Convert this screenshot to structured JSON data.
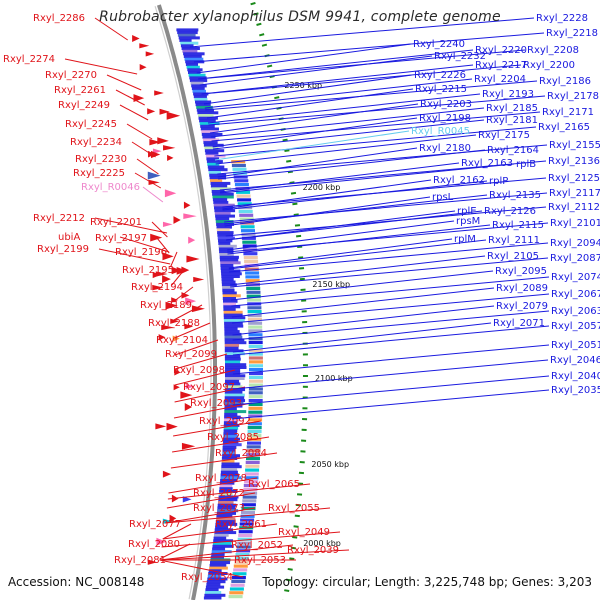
{
  "title": "Rubrobacter xylanophilus DSM 9941, complete genome",
  "footer": {
    "accession": "Accession: NC_008148",
    "summary": "Topology: circular; Length: 3,225,748 bp; Genes: 3,203"
  },
  "colors": {
    "forward_strand": "#e0141a",
    "reverse_strand": "#1a1adf",
    "rna_forward": "#ee88cc",
    "rna_reverse": "#66ccee",
    "backbone": "#8a8a8a",
    "tick": "#1a8a1a"
  },
  "coordinate_labels": [
    "2250 kbp",
    "2200 kbp",
    "2150 kbp",
    "2100 kbp",
    "2050 kbp",
    "2000 kbp"
  ],
  "left_labels": [
    {
      "text": "Rxyl_2286",
      "kind": "gene"
    },
    {
      "text": "Rxyl_2274",
      "kind": "gene"
    },
    {
      "text": "Rxyl_2270",
      "kind": "gene"
    },
    {
      "text": "Rxyl_2261",
      "kind": "gene"
    },
    {
      "text": "Rxyl_2249",
      "kind": "gene"
    },
    {
      "text": "Rxyl_2245",
      "kind": "gene"
    },
    {
      "text": "Rxyl_2234",
      "kind": "gene"
    },
    {
      "text": "Rxyl_2230",
      "kind": "gene"
    },
    {
      "text": "Rxyl_2225",
      "kind": "gene"
    },
    {
      "text": "Rxyl_R0046",
      "kind": "rna"
    },
    {
      "text": "Rxyl_2212",
      "kind": "gene"
    },
    {
      "text": "Rxyl_2201",
      "kind": "gene"
    },
    {
      "text": "ubiA",
      "kind": "gene"
    },
    {
      "text": "Rxyl_2197",
      "kind": "gene"
    },
    {
      "text": "Rxyl_2199",
      "kind": "gene"
    },
    {
      "text": "Rxyl_2196",
      "kind": "gene"
    },
    {
      "text": "Rxyl_2195",
      "kind": "gene"
    },
    {
      "text": "Rxyl_2194",
      "kind": "gene"
    },
    {
      "text": "Rxyl_2189",
      "kind": "gene"
    },
    {
      "text": "Rxyl_2188",
      "kind": "gene"
    },
    {
      "text": "Rxyl_2104",
      "kind": "gene"
    },
    {
      "text": "Rxyl_2099",
      "kind": "gene"
    },
    {
      "text": "Rxyl_2098",
      "kind": "gene"
    },
    {
      "text": "Rxyl_2097",
      "kind": "gene"
    },
    {
      "text": "Rxyl_2093",
      "kind": "gene"
    },
    {
      "text": "Rxyl_2092",
      "kind": "gene"
    },
    {
      "text": "Rxyl_2085",
      "kind": "gene"
    },
    {
      "text": "Rxyl_2084",
      "kind": "gene"
    },
    {
      "text": "Rxyl_2078",
      "kind": "gene"
    },
    {
      "text": "Rxyl_2072",
      "kind": "gene"
    },
    {
      "text": "Rxyl_2065",
      "kind": "gene"
    },
    {
      "text": "Rxyl_2073",
      "kind": "gene"
    },
    {
      "text": "Rxyl_2055",
      "kind": "gene"
    },
    {
      "text": "Rxyl_2077",
      "kind": "gene"
    },
    {
      "text": "Rxyl_2061",
      "kind": "gene"
    },
    {
      "text": "Rxyl_2049",
      "kind": "gene"
    },
    {
      "text": "Rxyl_2080",
      "kind": "gene"
    },
    {
      "text": "Rxyl_2052",
      "kind": "gene"
    },
    {
      "text": "Rxyl_2039",
      "kind": "gene"
    },
    {
      "text": "Rxyl_2081",
      "kind": "gene"
    },
    {
      "text": "Rxyl_2053",
      "kind": "gene"
    },
    {
      "text": "Rxyl_2054",
      "kind": "gene"
    }
  ],
  "right_labels": [
    {
      "text": "Rxyl_2228",
      "kind": "gene"
    },
    {
      "text": "Rxyl_2218",
      "kind": "gene"
    },
    {
      "text": "Rxyl_2240",
      "kind": "gene"
    },
    {
      "text": "Rxyl_2220",
      "kind": "gene"
    },
    {
      "text": "Rxyl_2208",
      "kind": "gene"
    },
    {
      "text": "Rxyl_2232",
      "kind": "gene"
    },
    {
      "text": "Rxyl_2217",
      "kind": "gene"
    },
    {
      "text": "Rxyl_2200",
      "kind": "gene"
    },
    {
      "text": "Rxyl_2226",
      "kind": "gene"
    },
    {
      "text": "Rxyl_2204",
      "kind": "gene"
    },
    {
      "text": "Rxyl_2186",
      "kind": "gene"
    },
    {
      "text": "Rxyl_2215",
      "kind": "gene"
    },
    {
      "text": "Rxyl_2193",
      "kind": "gene"
    },
    {
      "text": "Rxyl_2178",
      "kind": "gene"
    },
    {
      "text": "Rxyl_2203",
      "kind": "gene"
    },
    {
      "text": "Rxyl_2185",
      "kind": "gene"
    },
    {
      "text": "Rxyl_2171",
      "kind": "gene"
    },
    {
      "text": "Rxyl_2198",
      "kind": "gene"
    },
    {
      "text": "Rxyl_2181",
      "kind": "gene"
    },
    {
      "text": "Rxyl_2165",
      "kind": "gene"
    },
    {
      "text": "Rxyl_R0045",
      "kind": "rna"
    },
    {
      "text": "Rxyl_2175",
      "kind": "gene"
    },
    {
      "text": "Rxyl_2180",
      "kind": "gene"
    },
    {
      "text": "Rxyl_2164",
      "kind": "gene"
    },
    {
      "text": "Rxyl_2155",
      "kind": "gene"
    },
    {
      "text": "Rxyl_2163",
      "kind": "gene"
    },
    {
      "text": "rplB",
      "kind": "gene"
    },
    {
      "text": "Rxyl_2136",
      "kind": "gene"
    },
    {
      "text": "Rxyl_2162",
      "kind": "gene"
    },
    {
      "text": "rplP",
      "kind": "gene"
    },
    {
      "text": "Rxyl_2125",
      "kind": "gene"
    },
    {
      "text": "rpsL",
      "kind": "gene"
    },
    {
      "text": "Rxyl_2135",
      "kind": "gene"
    },
    {
      "text": "Rxyl_2117",
      "kind": "gene"
    },
    {
      "text": "rplE",
      "kind": "gene"
    },
    {
      "text": "Rxyl_2126",
      "kind": "gene"
    },
    {
      "text": "Rxyl_2112",
      "kind": "gene"
    },
    {
      "text": "rpsM",
      "kind": "gene"
    },
    {
      "text": "Rxyl_2115",
      "kind": "gene"
    },
    {
      "text": "Rxyl_2101",
      "kind": "gene"
    },
    {
      "text": "rplM",
      "kind": "gene"
    },
    {
      "text": "Rxyl_2111",
      "kind": "gene"
    },
    {
      "text": "Rxyl_2094",
      "kind": "gene"
    },
    {
      "text": "Rxyl_2105",
      "kind": "gene"
    },
    {
      "text": "Rxyl_2087",
      "kind": "gene"
    },
    {
      "text": "Rxyl_2095",
      "kind": "gene"
    },
    {
      "text": "Rxyl_2074",
      "kind": "gene"
    },
    {
      "text": "Rxyl_2089",
      "kind": "gene"
    },
    {
      "text": "Rxyl_2067",
      "kind": "gene"
    },
    {
      "text": "Rxyl_2079",
      "kind": "gene"
    },
    {
      "text": "Rxyl_2063",
      "kind": "gene"
    },
    {
      "text": "Rxyl_2071",
      "kind": "gene"
    },
    {
      "text": "Rxyl_2057",
      "kind": "gene"
    },
    {
      "text": "Rxyl_2051",
      "kind": "gene"
    },
    {
      "text": "Rxyl_2046",
      "kind": "gene"
    },
    {
      "text": "Rxyl_2040",
      "kind": "gene"
    },
    {
      "text": "Rxyl_2035",
      "kind": "gene"
    }
  ]
}
